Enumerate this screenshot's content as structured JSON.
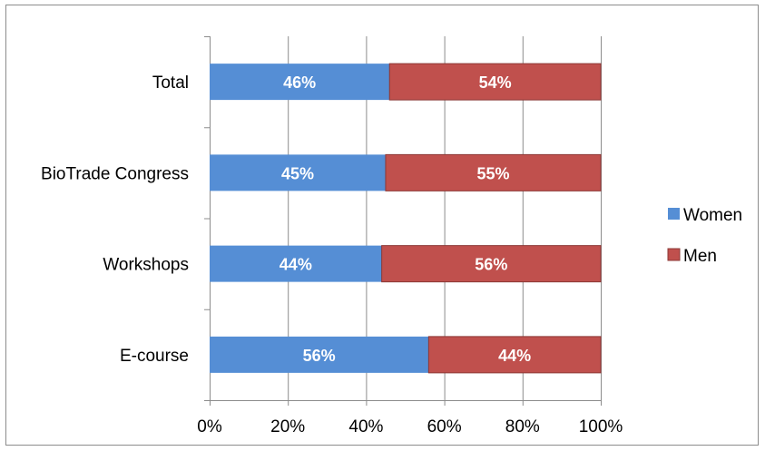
{
  "chart_data": {
    "type": "bar",
    "orientation": "horizontal",
    "stacked": "percent",
    "categories": [
      "Total",
      "BioTrade Congress",
      "Workshops",
      "E-course"
    ],
    "series": [
      {
        "name": "Women",
        "values": [
          46,
          45,
          44,
          56
        ],
        "labels": [
          "46%",
          "45%",
          "44%",
          "56%"
        ],
        "color": "#558ED5"
      },
      {
        "name": "Men",
        "values": [
          54,
          55,
          56,
          44
        ],
        "labels": [
          "54%",
          "55%",
          "56%",
          "44%"
        ],
        "color": "#C0504D"
      }
    ],
    "xlim": [
      0,
      100
    ],
    "xticks": [
      0,
      20,
      40,
      60,
      80,
      100
    ],
    "xtick_labels": [
      "0%",
      "20%",
      "40%",
      "60%",
      "80%",
      "100%"
    ],
    "grid": "vertical",
    "legend_position": "right"
  }
}
